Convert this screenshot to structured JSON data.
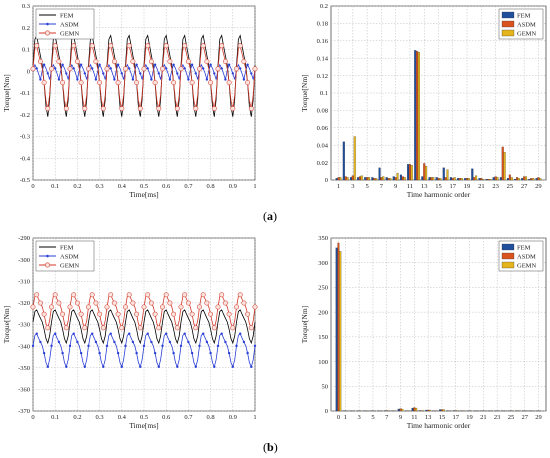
{
  "captions": {
    "a": "(a)",
    "b": "(b)"
  },
  "colors": {
    "FEM": "#000000",
    "ASDM": "#2a3fd6",
    "GEMN": "#d43a2a",
    "bar_FEM": "#1f4e9c",
    "bar_ASDM": "#d9531e",
    "bar_GEMN": "#e3b41b"
  },
  "chart_data": [
    {
      "id": "a-left",
      "type": "line",
      "xlabel": "Time[ms]",
      "ylabel": "Torque[Nm]",
      "xlim": [
        0,
        1
      ],
      "ylim": [
        -0.5,
        0.3
      ],
      "xticks": [
        "0",
        "0.1",
        "0.2",
        "0.3",
        "0.4",
        "0.5",
        "0.6",
        "0.7",
        "0.8",
        "0.9",
        "1"
      ],
      "yticks": [
        "-0.5",
        "-0.4",
        "-0.3",
        "-0.2",
        "-0.1",
        "0",
        "0.1",
        "0.2",
        "0.3"
      ],
      "legend": [
        "FEM",
        "ASDM",
        "GEMN"
      ],
      "legend_position": "top-left",
      "grid": true,
      "series": [
        {
          "name": "FEM",
          "mean": 0.0,
          "amp": 0.22,
          "periods": 12
        },
        {
          "name": "ASDM",
          "mean": 0.0,
          "amp": 0.04,
          "periods": 24
        },
        {
          "name": "GEMN",
          "mean": -0.01,
          "amp": 0.17,
          "periods": 12
        }
      ]
    },
    {
      "id": "a-right",
      "type": "bar",
      "xlabel": "Time harmonic order",
      "ylabel": "Torque[Nm]",
      "ylim": [
        0,
        0.2
      ],
      "yticks": [
        "0",
        "0.02",
        "0.04",
        "0.06",
        "0.08",
        "0.1",
        "0.12",
        "0.14",
        "0.16",
        "0.18",
        "0.2"
      ],
      "xticks": [
        "1",
        "3",
        "5",
        "7",
        "9",
        "11",
        "13",
        "15",
        "17",
        "19",
        "21",
        "23",
        "25",
        "27",
        "29"
      ],
      "legend": [
        "FEM",
        "ASDM",
        "GEMN"
      ],
      "legend_position": "top-right",
      "grid": true,
      "categories": [
        1,
        2,
        3,
        4,
        5,
        6,
        7,
        8,
        9,
        10,
        11,
        12,
        13,
        14,
        15,
        16,
        17,
        18,
        19,
        20,
        21,
        22,
        23,
        24,
        25,
        26,
        27,
        28,
        29
      ],
      "series": [
        {
          "name": "FEM",
          "values": [
            0.002,
            0.044,
            0.003,
            0.003,
            0.003,
            0.003,
            0.014,
            0.003,
            0.004,
            0.006,
            0.018,
            0.149,
            0.004,
            0.003,
            0.003,
            0.014,
            0.003,
            0.002,
            0.002,
            0.013,
            0.002,
            0.001,
            0.003,
            0.003,
            0.002,
            0.001,
            0.002,
            0.001,
            0.002
          ]
        },
        {
          "name": "ASDM",
          "values": [
            0.003,
            0.004,
            0.005,
            0.004,
            0.003,
            0.002,
            0.003,
            0.002,
            0.003,
            0.004,
            0.018,
            0.148,
            0.019,
            0.003,
            0.002,
            0.003,
            0.002,
            0.002,
            0.002,
            0.003,
            0.002,
            0.001,
            0.004,
            0.038,
            0.006,
            0.003,
            0.004,
            0.002,
            0.003
          ]
        },
        {
          "name": "GEMN",
          "values": [
            0.003,
            0.003,
            0.05,
            0.005,
            0.003,
            0.002,
            0.004,
            0.002,
            0.008,
            0.003,
            0.017,
            0.147,
            0.016,
            0.003,
            0.002,
            0.012,
            0.003,
            0.002,
            0.002,
            0.005,
            0.001,
            0.001,
            0.003,
            0.032,
            0.003,
            0.002,
            0.004,
            0.002,
            0.002
          ]
        }
      ]
    },
    {
      "id": "b-left",
      "type": "line",
      "xlabel": "Time[ms]",
      "ylabel": "Torque[Nm]",
      "xlim": [
        0,
        1
      ],
      "ylim": [
        -370,
        -290
      ],
      "xticks": [
        "0",
        "0.1",
        "0.2",
        "0.3",
        "0.4",
        "0.5",
        "0.6",
        "0.7",
        "0.8",
        "0.9",
        "1"
      ],
      "yticks": [
        "-370",
        "-360",
        "-350",
        "-340",
        "-330",
        "-320",
        "-310",
        "-300",
        "-290"
      ],
      "legend": [
        "FEM",
        "ASDM",
        "GEMN"
      ],
      "legend_position": "top-left",
      "grid": true,
      "series": [
        {
          "name": "FEM",
          "mean": -330,
          "amp": 9,
          "periods": 12
        },
        {
          "name": "ASDM",
          "mean": -341,
          "amp": 9,
          "periods": 12
        },
        {
          "name": "GEMN",
          "mean": -323,
          "amp": 9,
          "periods": 12
        }
      ]
    },
    {
      "id": "b-right",
      "type": "bar",
      "xlabel": "Time harmonic order",
      "ylabel": "Torque[Nm]",
      "ylim": [
        0,
        350
      ],
      "yticks": [
        "0",
        "50",
        "100",
        "150",
        "200",
        "250",
        "300",
        "350"
      ],
      "xticks": [
        "0",
        "1",
        "3",
        "5",
        "7",
        "9",
        "11",
        "13",
        "15",
        "17",
        "19",
        "21",
        "23",
        "25",
        "27",
        "29"
      ],
      "legend": [
        "FEM",
        "ASDM",
        "GEMN"
      ],
      "legend_position": "top-right",
      "grid": true,
      "categories": [
        0,
        1,
        2,
        3,
        4,
        5,
        6,
        7,
        8,
        9,
        10,
        11,
        12,
        13,
        14,
        15,
        16,
        17,
        18,
        19,
        20,
        21,
        22,
        23,
        24,
        25,
        26,
        27,
        28,
        29
      ],
      "series": [
        {
          "name": "FEM",
          "values": [
            330,
            0.5,
            0.5,
            0.5,
            0.5,
            0.5,
            0.5,
            1,
            0.5,
            4,
            0.5,
            6,
            1,
            2,
            0.5,
            3,
            0.5,
            1,
            0.5,
            0.5,
            0.5,
            0.5,
            0.5,
            0.5,
            0.5,
            0.5,
            0.5,
            0.5,
            0.5,
            0.5
          ]
        },
        {
          "name": "ASDM",
          "values": [
            340,
            0.5,
            0.5,
            0.5,
            0.5,
            0.5,
            0.5,
            1,
            0.5,
            5,
            0.5,
            7,
            1,
            2,
            0.5,
            3,
            0.5,
            1,
            0.5,
            0.5,
            0.5,
            0.5,
            0.5,
            0.5,
            0.5,
            0.5,
            0.5,
            0.5,
            0.5,
            0.5
          ]
        },
        {
          "name": "GEMN",
          "values": [
            323,
            0.5,
            0.5,
            0.5,
            0.5,
            0.5,
            0.5,
            1,
            0.5,
            4,
            0.5,
            6,
            1,
            2,
            0.5,
            3,
            0.5,
            1,
            0.5,
            0.5,
            0.5,
            0.5,
            0.5,
            0.5,
            0.5,
            0.5,
            0.5,
            0.5,
            0.5,
            0.5
          ]
        }
      ]
    }
  ]
}
